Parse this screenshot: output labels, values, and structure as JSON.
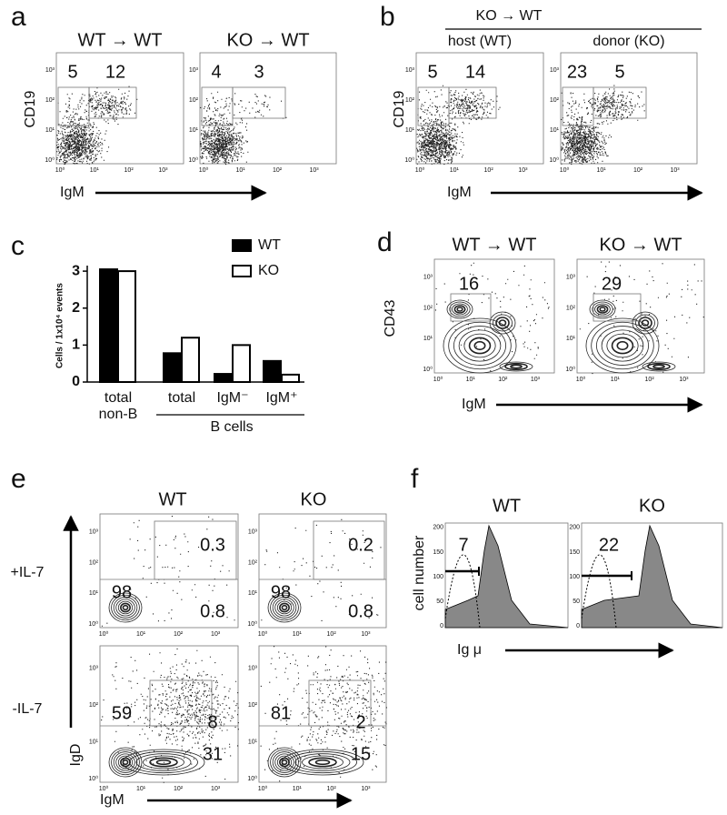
{
  "axes": {
    "decades": [
      "10⁰",
      "10¹",
      "10²",
      "10³"
    ]
  },
  "panel_a": {
    "label": "a",
    "plots": [
      {
        "title": "WT → WT",
        "gates": [
          5,
          12
        ]
      },
      {
        "title": "KO → WT",
        "gates": [
          4,
          3
        ]
      }
    ],
    "y_label": "CD19",
    "x_label": "IgM"
  },
  "panel_b": {
    "label": "b",
    "header": "KO → WT",
    "plots": [
      {
        "title": "host (WT)",
        "gates": [
          5,
          14
        ]
      },
      {
        "title": "donor (KO)",
        "gates": [
          23,
          5
        ]
      }
    ],
    "y_label": "CD19",
    "x_label": "IgM"
  },
  "panel_c": {
    "label": "c"
  },
  "chart_data": {
    "type": "bar",
    "y_label": "Cells / 1x10⁴ events",
    "categories": [
      "total non-B",
      "total",
      "IgM⁻",
      "IgM⁺"
    ],
    "group_label": "B cells",
    "series": [
      {
        "name": "WT",
        "color": "#000000",
        "values": [
          3.05,
          0.78,
          0.22,
          0.57
        ]
      },
      {
        "name": "KO",
        "color": "#ffffff",
        "values": [
          3.0,
          1.2,
          1.0,
          0.2
        ]
      }
    ],
    "ylim": [
      0,
      3.15
    ],
    "yticks": [
      0,
      1,
      2,
      3
    ]
  },
  "panel_d": {
    "label": "d",
    "plots": [
      {
        "title": "WT → WT",
        "gate": 16
      },
      {
        "title": "KO → WT",
        "gate": 29
      }
    ],
    "y_label": "CD43",
    "x_label": "IgM"
  },
  "panel_e": {
    "label": "e",
    "columns": [
      "WT",
      "KO"
    ],
    "rows": [
      {
        "label": "+IL-7",
        "plots": [
          {
            "gates": [
              0.3,
              98,
              0.8
            ]
          },
          {
            "gates": [
              0.2,
              98,
              0.8
            ]
          }
        ]
      },
      {
        "label": "-IL-7",
        "plots": [
          {
            "gates": [
              8,
              59,
              31
            ]
          },
          {
            "gates": [
              2,
              81,
              15
            ]
          }
        ]
      }
    ],
    "y_label": "IgD",
    "x_label": "IgM"
  },
  "panel_f": {
    "label": "f",
    "plots": [
      {
        "title": "WT",
        "gate": 7
      },
      {
        "title": "KO",
        "gate": 22
      }
    ],
    "yticks": [
      0,
      50,
      100,
      150,
      200
    ],
    "y_label": "cell number",
    "x_label": "Ig μ"
  }
}
